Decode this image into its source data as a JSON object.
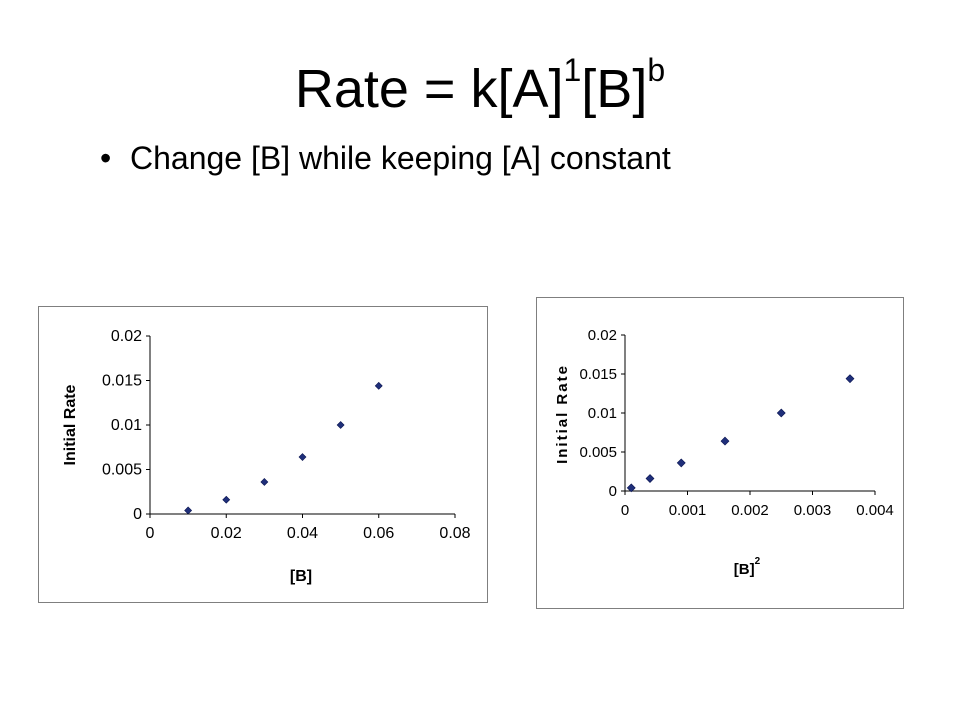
{
  "slide": {
    "title_base": "Rate = k[A]",
    "title_exp1": "1",
    "title_mid": "[B]",
    "title_exp2": "b",
    "bullet": "Change [B] while keeping [A] constant"
  },
  "chart_data": [
    {
      "type": "scatter",
      "xlabel": "[B]",
      "ylabel": "Initial Rate",
      "xlim": [
        0,
        0.08
      ],
      "ylim": [
        0,
        0.02
      ],
      "x_ticks": [
        "0",
        "0.02",
        "0.04",
        "0.06",
        "0.08"
      ],
      "y_ticks": [
        "0",
        "0.005",
        "0.01",
        "0.015",
        "0.02"
      ],
      "grid": false,
      "marker_color": "#1f2f7a",
      "points": [
        {
          "x": 0.01,
          "y": 0.0004
        },
        {
          "x": 0.02,
          "y": 0.0016
        },
        {
          "x": 0.03,
          "y": 0.0036
        },
        {
          "x": 0.04,
          "y": 0.0064
        },
        {
          "x": 0.05,
          "y": 0.01
        },
        {
          "x": 0.06,
          "y": 0.0144
        }
      ]
    },
    {
      "type": "scatter",
      "xlabel": "[B]",
      "xlabel_sup": "2",
      "ylabel": "Initial Rate",
      "xlim": [
        0,
        0.004
      ],
      "ylim": [
        0,
        0.02
      ],
      "x_ticks": [
        "0",
        "0.001",
        "0.002",
        "0.003",
        "0.004"
      ],
      "y_ticks": [
        "0",
        "0.005",
        "0.01",
        "0.015",
        "0.02"
      ],
      "grid": false,
      "marker_color": "#1f2f7a",
      "points": [
        {
          "x": 0.0001,
          "y": 0.0004
        },
        {
          "x": 0.0004,
          "y": 0.0016
        },
        {
          "x": 0.0009,
          "y": 0.0036
        },
        {
          "x": 0.0016,
          "y": 0.0064
        },
        {
          "x": 0.0025,
          "y": 0.01
        },
        {
          "x": 0.0036,
          "y": 0.0144
        }
      ]
    }
  ]
}
